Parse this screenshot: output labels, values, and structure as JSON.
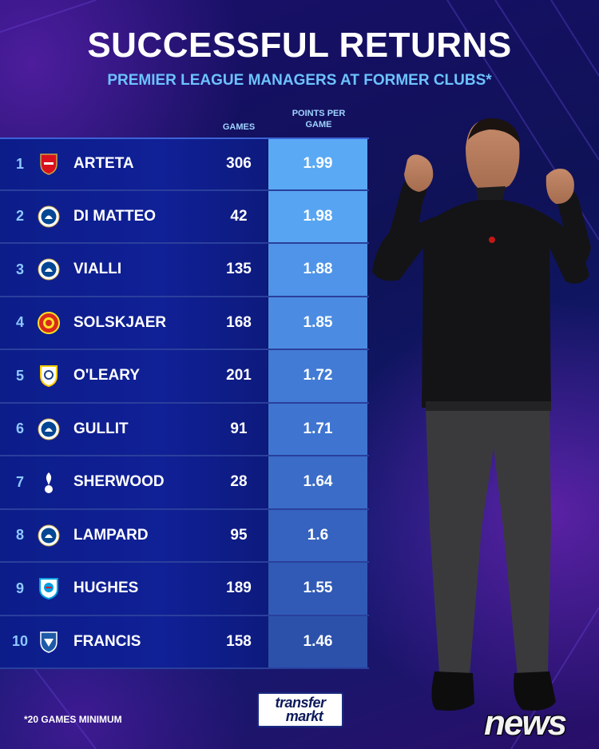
{
  "header": {
    "title": "SUCCESSFUL RETURNS",
    "subtitle": "PREMIER LEAGUE MANAGERS AT FORMER CLUBS*"
  },
  "columns": {
    "games": "GAMES",
    "ppg": "POINTS PER GAME"
  },
  "rows": [
    {
      "rank": "1",
      "name": "ARTETA",
      "club_icon": "arsenal-crest",
      "games": "306",
      "ppg": "1.99",
      "ppg_color": "#5aa9f5"
    },
    {
      "rank": "2",
      "name": "DI MATTEO",
      "club_icon": "chelsea-crest",
      "games": "42",
      "ppg": "1.98",
      "ppg_color": "#57a5f2"
    },
    {
      "rank": "3",
      "name": "VIALLI",
      "club_icon": "chelsea-crest",
      "games": "135",
      "ppg": "1.88",
      "ppg_color": "#4f94e8"
    },
    {
      "rank": "4",
      "name": "SOLSKJAER",
      "club_icon": "man-united-crest",
      "games": "168",
      "ppg": "1.85",
      "ppg_color": "#4b8ce2"
    },
    {
      "rank": "5",
      "name": "O'LEARY",
      "club_icon": "leeds-crest",
      "games": "201",
      "ppg": "1.72",
      "ppg_color": "#427bd6"
    },
    {
      "rank": "6",
      "name": "GULLIT",
      "club_icon": "chelsea-crest",
      "games": "91",
      "ppg": "1.71",
      "ppg_color": "#3f75d0"
    },
    {
      "rank": "7",
      "name": "SHERWOOD",
      "club_icon": "tottenham-crest",
      "games": "28",
      "ppg": "1.64",
      "ppg_color": "#3a6cc8"
    },
    {
      "rank": "8",
      "name": "LAMPARD",
      "club_icon": "chelsea-crest",
      "games": "95",
      "ppg": "1.6",
      "ppg_color": "#3563bf"
    },
    {
      "rank": "9",
      "name": "HUGHES",
      "club_icon": "blackburn-crest",
      "games": "189",
      "ppg": "1.55",
      "ppg_color": "#305ab6"
    },
    {
      "rank": "10",
      "name": "FRANCIS",
      "club_icon": "sheffield-wednesday-crest",
      "games": "158",
      "ppg": "1.46",
      "ppg_color": "#2b51ab"
    }
  ],
  "footer": {
    "footnote": "*20 GAMES MINIMUM",
    "logo_line1": "transfer",
    "logo_line2": "markt",
    "watermark": "news"
  },
  "colors": {
    "title": "#ffffff",
    "subtitle": "#6cc3ff",
    "row_bg": "#102096"
  }
}
